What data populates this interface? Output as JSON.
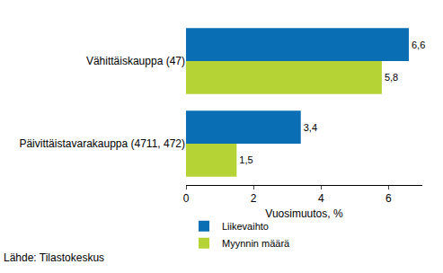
{
  "chart_data": {
    "type": "bar",
    "orientation": "horizontal",
    "categories": [
      "Vähittäiskauppa (47)",
      "Päivittäistavarakauppa (4711, 472)"
    ],
    "series": [
      {
        "name": "Liikevaihto",
        "color": "#0a6eb4",
        "values": [
          6.6,
          3.4
        ],
        "value_labels": [
          "6,6",
          "3,4"
        ]
      },
      {
        "name": "Myynnin määrä",
        "color": "#b5d334",
        "values": [
          5.8,
          1.5
        ],
        "value_labels": [
          "5,8",
          "1,5"
        ]
      }
    ],
    "x_label": "Vuosimuutos, %",
    "xlim": [
      0,
      7
    ],
    "xticks": [
      0,
      2,
      4,
      6
    ],
    "grid": false,
    "data_labels": true,
    "legend": "bottom left",
    "annotations": [
      "Lähde: Tilastokeskus"
    ]
  }
}
